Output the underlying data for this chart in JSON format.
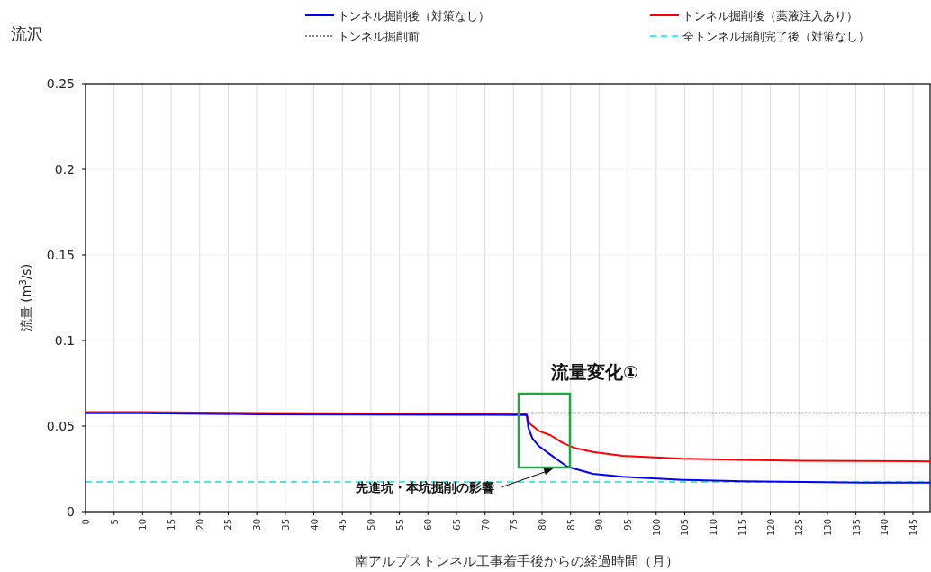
{
  "chart_data": {
    "type": "line",
    "title": "流沢",
    "xlabel": "南アルプストンネル工事着手後からの経過時間（月）",
    "ylabel": "流量 (m$^{3}$/s)",
    "xlim": [
      0,
      148
    ],
    "xticks": [
      0,
      5,
      10,
      15,
      20,
      25,
      30,
      35,
      40,
      45,
      50,
      55,
      60,
      65,
      70,
      75,
      80,
      85,
      90,
      95,
      100,
      105,
      110,
      115,
      120,
      125,
      130,
      135,
      140,
      145
    ],
    "ylim": [
      0,
      0.25
    ],
    "yticks": [
      0,
      0.05,
      0.1,
      0.15,
      0.2,
      0.25
    ],
    "grid": true,
    "legend": "top",
    "marker": "none",
    "series": [
      {
        "name": "トンネル掘削後（対策なし）",
        "color": "#0000ff",
        "line_style": "solid",
        "x": [
          0,
          10,
          30,
          50,
          70,
          77,
          77.3,
          77.6,
          78.3,
          79.4,
          81.5,
          84.4,
          88.9,
          94.1,
          104.7,
          115.2,
          125.7,
          136.2,
          148
        ],
        "values": [
          0.0575,
          0.0575,
          0.0569,
          0.0567,
          0.0566,
          0.0565,
          0.0565,
          0.049,
          0.0428,
          0.0384,
          0.0332,
          0.0263,
          0.0221,
          0.0204,
          0.0186,
          0.0177,
          0.0174,
          0.017,
          0.017
        ]
      },
      {
        "name": "トンネル掘削後（薬液注入あり）",
        "color": "#ff0000",
        "line_style": "solid",
        "x": [
          0,
          10,
          30,
          50,
          70,
          77,
          77.3,
          77.8,
          79.4,
          81.5,
          83.6,
          85.7,
          88.9,
          94.1,
          104.7,
          115.2,
          125.7,
          136.2,
          148
        ],
        "values": [
          0.0582,
          0.0582,
          0.0576,
          0.0574,
          0.0572,
          0.057,
          0.0568,
          0.0516,
          0.0472,
          0.0446,
          0.0402,
          0.0372,
          0.0349,
          0.0326,
          0.0309,
          0.0302,
          0.0297,
          0.0296,
          0.0294
        ]
      },
      {
        "name": "トンネル掘削前",
        "color": "#555555",
        "line_style": "dotted",
        "x": [
          77.5,
          148
        ],
        "values": [
          0.0576,
          0.0576
        ]
      },
      {
        "name": "全トンネル掘削完了後（対策なし）",
        "color": "#00e5e5",
        "line_style": "dashed",
        "x": [
          0,
          148
        ],
        "values": [
          0.0174,
          0.0174
        ]
      }
    ],
    "annotations": [
      "流量変化①",
      "先進坑・本坑掘削の影響"
    ]
  }
}
